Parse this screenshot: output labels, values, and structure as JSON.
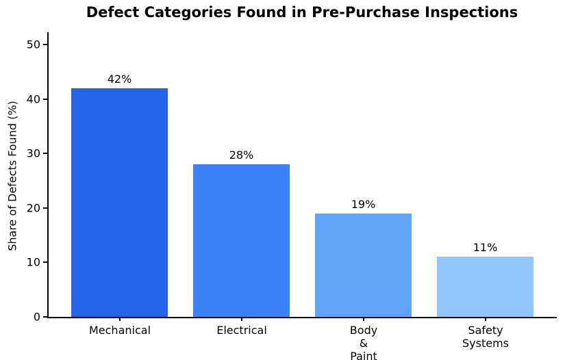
{
  "chart_data": {
    "type": "bar",
    "title": "Defect Categories Found in Pre-Purchase Inspections",
    "xlabel": "",
    "ylabel": "Share of Defects Found (%)",
    "categories": [
      "Mechanical",
      "Electrical",
      "Body & Paint",
      "Safety\nSystems"
    ],
    "values": [
      42,
      28,
      19,
      11
    ],
    "value_labels": [
      "42%",
      "28%",
      "19%",
      "11%"
    ],
    "bar_colors": [
      "#2563eb",
      "#3b82f6",
      "#60a5fa",
      "#93c5fd"
    ],
    "yticks": [
      0,
      10,
      20,
      30,
      40,
      50
    ],
    "ylim": [
      0,
      52
    ],
    "grid": false,
    "legend": null,
    "text_color": "#000000",
    "background_color": "#ffffff"
  }
}
